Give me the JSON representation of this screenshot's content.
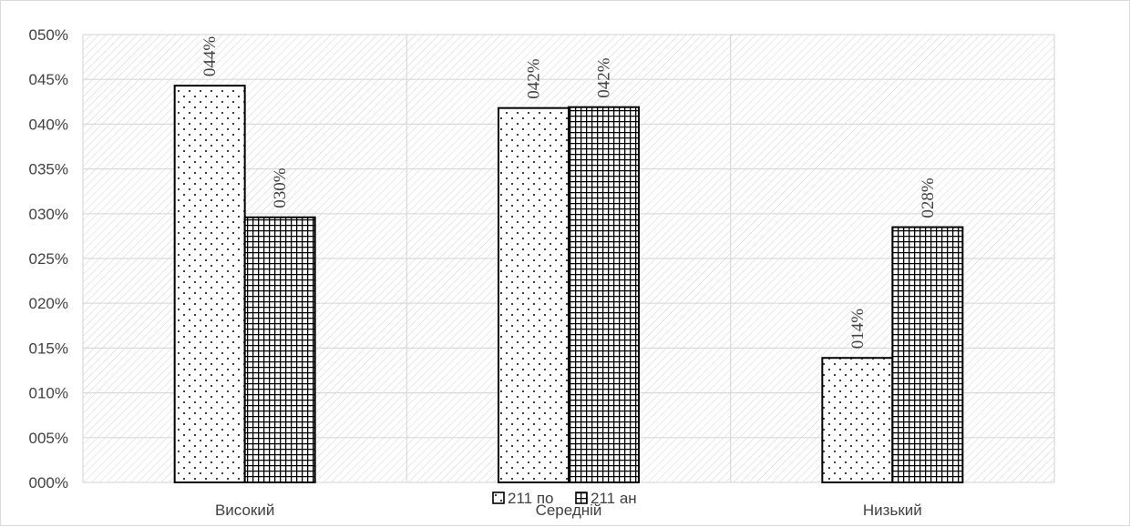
{
  "chart_data": {
    "type": "bar",
    "categories": [
      "Високий",
      "Середній",
      "Низький"
    ],
    "series": [
      {
        "name": "211 по",
        "values": [
          0.443,
          0.418,
          0.139
        ],
        "labels": [
          "044%",
          "042%",
          "014%"
        ],
        "pattern": "dots"
      },
      {
        "name": "211 ан",
        "values": [
          0.296,
          0.419,
          0.285
        ],
        "labels": [
          "030%",
          "042%",
          "028%"
        ],
        "pattern": "grid"
      }
    ],
    "title": "",
    "xlabel": "",
    "ylabel": "",
    "ylim": [
      0,
      0.5
    ],
    "yticks": [
      0,
      0.05,
      0.1,
      0.15,
      0.2,
      0.25,
      0.3,
      0.35,
      0.4,
      0.45,
      0.5
    ],
    "ytick_labels": [
      "000%",
      "005%",
      "010%",
      "015%",
      "020%",
      "025%",
      "030%",
      "035%",
      "040%",
      "045%",
      "050%"
    ],
    "grid": true,
    "legend_position": "bottom-center",
    "colors": {
      "bar_stroke": "#000000",
      "bar_fill": "#ffffff",
      "background_hatch": "#d0d0d0",
      "gridline": "#d9d9d9"
    }
  }
}
